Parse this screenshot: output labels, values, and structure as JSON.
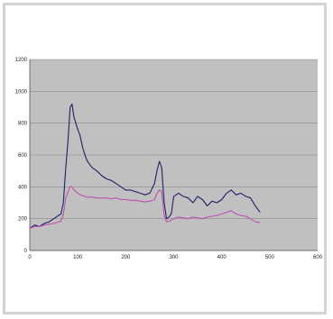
{
  "chart_data": {
    "type": "line",
    "title": "",
    "xlabel": "",
    "ylabel": "",
    "xlim": [
      0,
      600
    ],
    "ylim": [
      0,
      1200
    ],
    "x_ticks": [
      0,
      100,
      200,
      300,
      400,
      500,
      600
    ],
    "y_ticks": [
      0,
      200,
      400,
      600,
      800,
      1000,
      1200
    ],
    "grid": true,
    "legend": "none",
    "plot_background": "#c0c0c0",
    "series": [
      {
        "color": "#1f1f6b",
        "x": [
          0,
          10,
          20,
          30,
          40,
          50,
          60,
          65,
          70,
          75,
          80,
          84,
          88,
          92,
          96,
          100,
          105,
          110,
          115,
          120,
          130,
          140,
          150,
          160,
          170,
          180,
          190,
          200,
          210,
          220,
          230,
          240,
          250,
          260,
          265,
          270,
          275,
          280,
          285,
          290,
          295,
          300,
          310,
          320,
          330,
          340,
          350,
          360,
          370,
          380,
          390,
          400,
          410,
          420,
          430,
          440,
          450,
          460,
          470,
          480
        ],
        "y": [
          140,
          160,
          150,
          170,
          180,
          200,
          220,
          230,
          300,
          520,
          700,
          900,
          920,
          840,
          800,
          760,
          720,
          650,
          600,
          560,
          520,
          500,
          470,
          450,
          440,
          420,
          400,
          380,
          380,
          370,
          360,
          350,
          360,
          420,
          500,
          560,
          520,
          300,
          200,
          210,
          230,
          340,
          360,
          340,
          330,
          300,
          340,
          320,
          280,
          310,
          300,
          320,
          360,
          380,
          350,
          360,
          340,
          330,
          280,
          240
        ]
      },
      {
        "color": "#c050b0",
        "x": [
          0,
          10,
          20,
          30,
          40,
          50,
          60,
          65,
          70,
          75,
          80,
          84,
          88,
          92,
          96,
          100,
          105,
          110,
          115,
          120,
          130,
          140,
          150,
          160,
          170,
          180,
          190,
          200,
          210,
          220,
          230,
          240,
          250,
          260,
          265,
          270,
          275,
          280,
          285,
          290,
          295,
          300,
          310,
          320,
          330,
          340,
          350,
          360,
          370,
          380,
          390,
          400,
          410,
          420,
          430,
          440,
          450,
          460,
          470,
          480
        ],
        "y": [
          140,
          150,
          150,
          160,
          165,
          170,
          180,
          185,
          230,
          330,
          370,
          400,
          400,
          380,
          370,
          360,
          350,
          345,
          340,
          335,
          335,
          330,
          330,
          330,
          325,
          330,
          320,
          320,
          315,
          315,
          310,
          305,
          310,
          320,
          360,
          380,
          370,
          220,
          180,
          185,
          190,
          200,
          210,
          205,
          200,
          210,
          205,
          200,
          210,
          215,
          220,
          230,
          240,
          250,
          230,
          220,
          215,
          200,
          180,
          175
        ]
      }
    ]
  }
}
